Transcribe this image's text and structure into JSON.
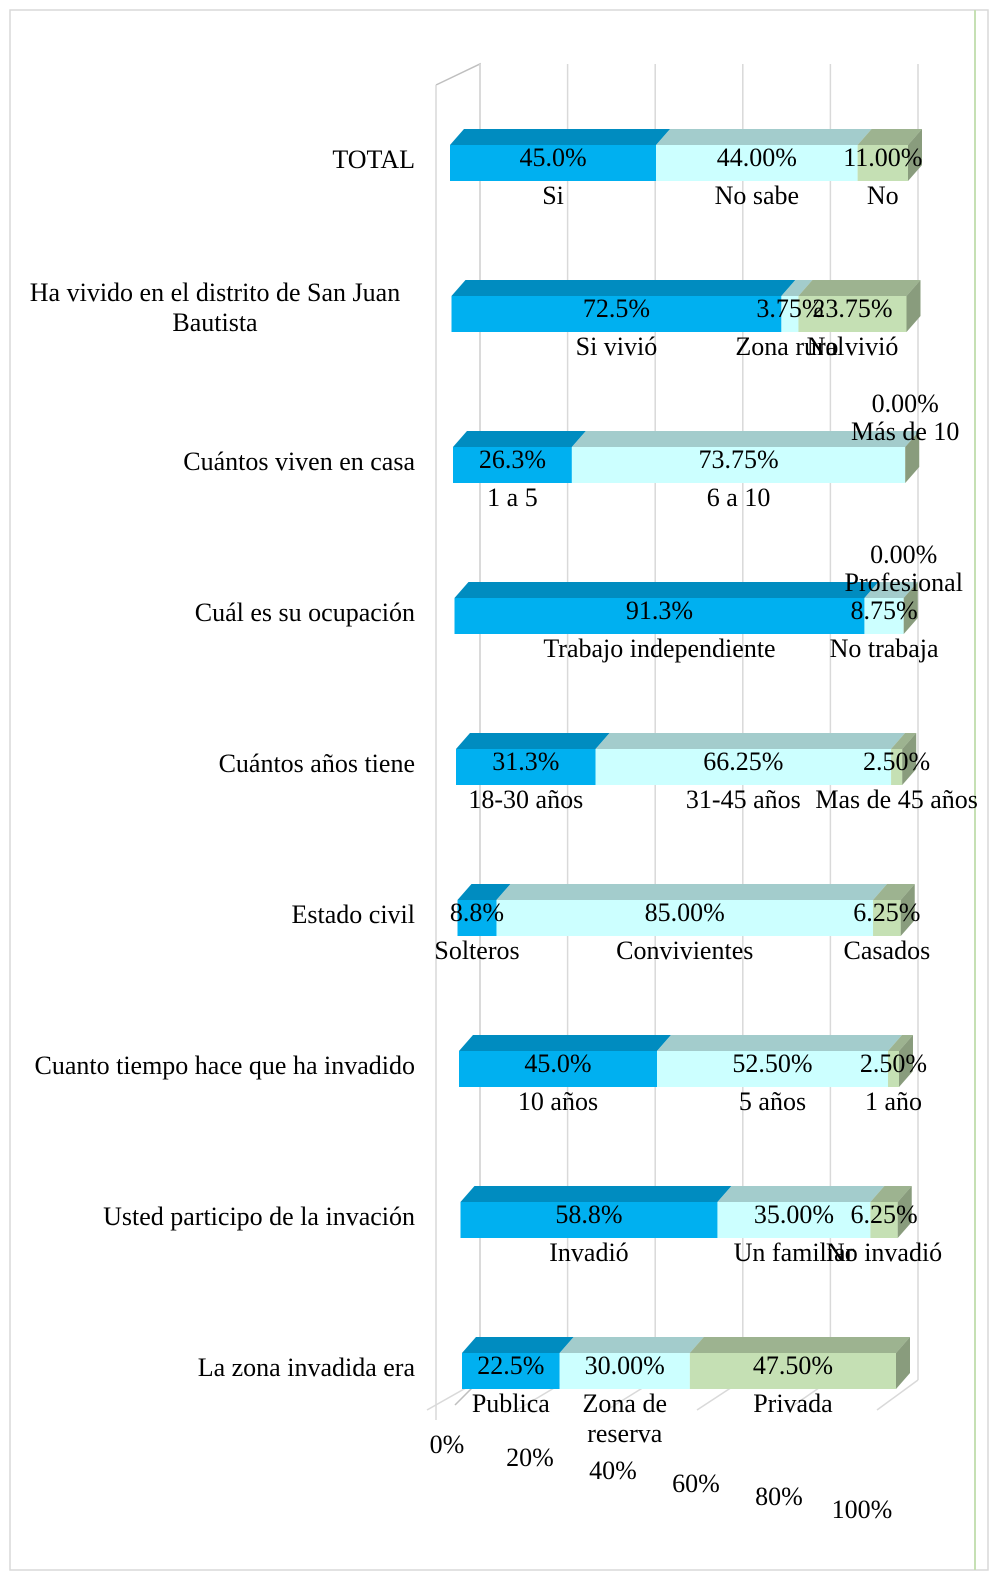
{
  "chart_data": {
    "type": "bar",
    "orientation": "horizontal",
    "stacked": true,
    "colors": [
      "#00b0f0",
      "#ccffff",
      "#c5e0b4"
    ],
    "xlim": [
      0,
      100
    ],
    "xticks": [
      {
        "value": 0,
        "label": "0%"
      },
      {
        "value": 20,
        "label": "20%"
      },
      {
        "value": 40,
        "label": "40%"
      },
      {
        "value": 60,
        "label": "60%"
      },
      {
        "value": 80,
        "label": "80%"
      },
      {
        "value": 100,
        "label": "100%"
      }
    ],
    "grid": true,
    "rows": [
      {
        "category": "TOTAL",
        "segments": [
          {
            "name": "Si",
            "value": 45.0,
            "value_label": "45.0%"
          },
          {
            "name": "No sabe",
            "value": 44,
            "value_label": "44.00%"
          },
          {
            "name": "No",
            "value": 11,
            "value_label": "11.00%"
          }
        ]
      },
      {
        "category": "Ha vivido en el distrito de San Juan Bautista",
        "segments": [
          {
            "name": "Si vivió",
            "value": 72.5,
            "value_label": "72.5%"
          },
          {
            "name": "Zona rural",
            "value": 3.75,
            "value_label": "3.75%"
          },
          {
            "name": "No vivió",
            "value": 23.75,
            "value_label": "23.75%"
          }
        ]
      },
      {
        "category": "Cuántos viven en casa",
        "segments": [
          {
            "name": "1 a 5",
            "value": 26.3,
            "value_label": "26.3%"
          },
          {
            "name": "6 a 10",
            "value": 73.75,
            "value_label": "73.75%"
          },
          {
            "name": "Más de 10",
            "value": 0,
            "value_label": "0.00%"
          }
        ]
      },
      {
        "category": "Cuál es su ocupación",
        "segments": [
          {
            "name": "Trabajo independiente",
            "value": 91.3,
            "value_label": "91.3%"
          },
          {
            "name": "No trabaja",
            "value": 8.75,
            "value_label": "8.75%"
          },
          {
            "name": "Profesional",
            "value": 0,
            "value_label": "0.00%"
          }
        ]
      },
      {
        "category": "Cuántos años tiene",
        "segments": [
          {
            "name": "18-30 años",
            "value": 31.3,
            "value_label": "31.3%"
          },
          {
            "name": "31-45 años",
            "value": 66.25,
            "value_label": "66.25%"
          },
          {
            "name": "Mas de 45 años",
            "value": 2.5,
            "value_label": "2.50%"
          }
        ]
      },
      {
        "category": "Estado civil",
        "segments": [
          {
            "name": "Solteros",
            "value": 8.8,
            "value_label": "8.8%"
          },
          {
            "name": "Convivientes",
            "value": 85,
            "value_label": "85.00%"
          },
          {
            "name": "Casados",
            "value": 6.25,
            "value_label": "6.25%"
          }
        ]
      },
      {
        "category": "Cuanto tiempo hace que ha invadido",
        "segments": [
          {
            "name": "10 años",
            "value": 45.0,
            "value_label": "45.0%"
          },
          {
            "name": "5 años",
            "value": 52.5,
            "value_label": "52.50%"
          },
          {
            "name": "1 año",
            "value": 2.5,
            "value_label": "2.50%"
          }
        ]
      },
      {
        "category": "Usted participo de la invación",
        "segments": [
          {
            "name": "Invadió",
            "value": 58.8,
            "value_label": "58.8%"
          },
          {
            "name": "Un familiar",
            "value": 35,
            "value_label": "35.00%"
          },
          {
            "name": "No invadió",
            "value": 6.25,
            "value_label": "6.25%"
          }
        ]
      },
      {
        "category": "La zona invadida era",
        "segments": [
          {
            "name": "Publica",
            "value": 22.5,
            "value_label": "22.5%"
          },
          {
            "name": "Zona de reserva",
            "value": 30,
            "value_label": "30.00%"
          },
          {
            "name": "Privada",
            "value": 47.5,
            "value_label": "47.50%"
          }
        ]
      }
    ]
  }
}
